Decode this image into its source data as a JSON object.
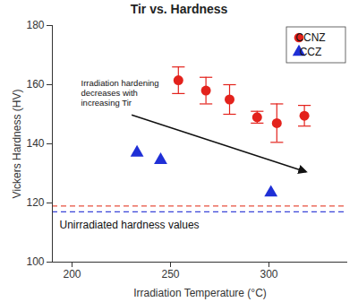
{
  "chart_data": {
    "type": "scatter",
    "title": "Tir vs. Hardness",
    "x_label": "Irradiation Temperature (°C)",
    "y_label": "Vickers Hardness (HV)",
    "xlim": [
      190,
      340
    ],
    "xticks": [
      200,
      250,
      300
    ],
    "ylim": [
      100,
      180
    ],
    "yticks": [
      100,
      120,
      140,
      160,
      180
    ],
    "grid": false,
    "legend": "top-right",
    "series": [
      {
        "name": "CCNZ",
        "color": "#e3221c",
        "marker": "circle",
        "x": [
          254,
          268,
          280,
          294,
          304,
          318
        ],
        "values": [
          161.5,
          158,
          155,
          149,
          147,
          149.5
        ],
        "error": [
          4.5,
          4.5,
          5,
          2,
          6.5,
          3.5
        ]
      },
      {
        "name": "CCZ",
        "color": "#1f2fd6",
        "marker": "triangle",
        "x": [
          233,
          245,
          301
        ],
        "values": [
          137,
          134.5,
          123.5
        ]
      }
    ],
    "reference_lines": [
      {
        "value": 119,
        "color": "#e8503f",
        "line_style": "dashed"
      },
      {
        "value": 117,
        "color": "#3a44d8",
        "line_style": "dashed"
      }
    ],
    "reference_label": "Unirradiated hardness values",
    "annotation": [
      "Irradiation hardening",
      "decreases with",
      "increasing Tir"
    ]
  }
}
